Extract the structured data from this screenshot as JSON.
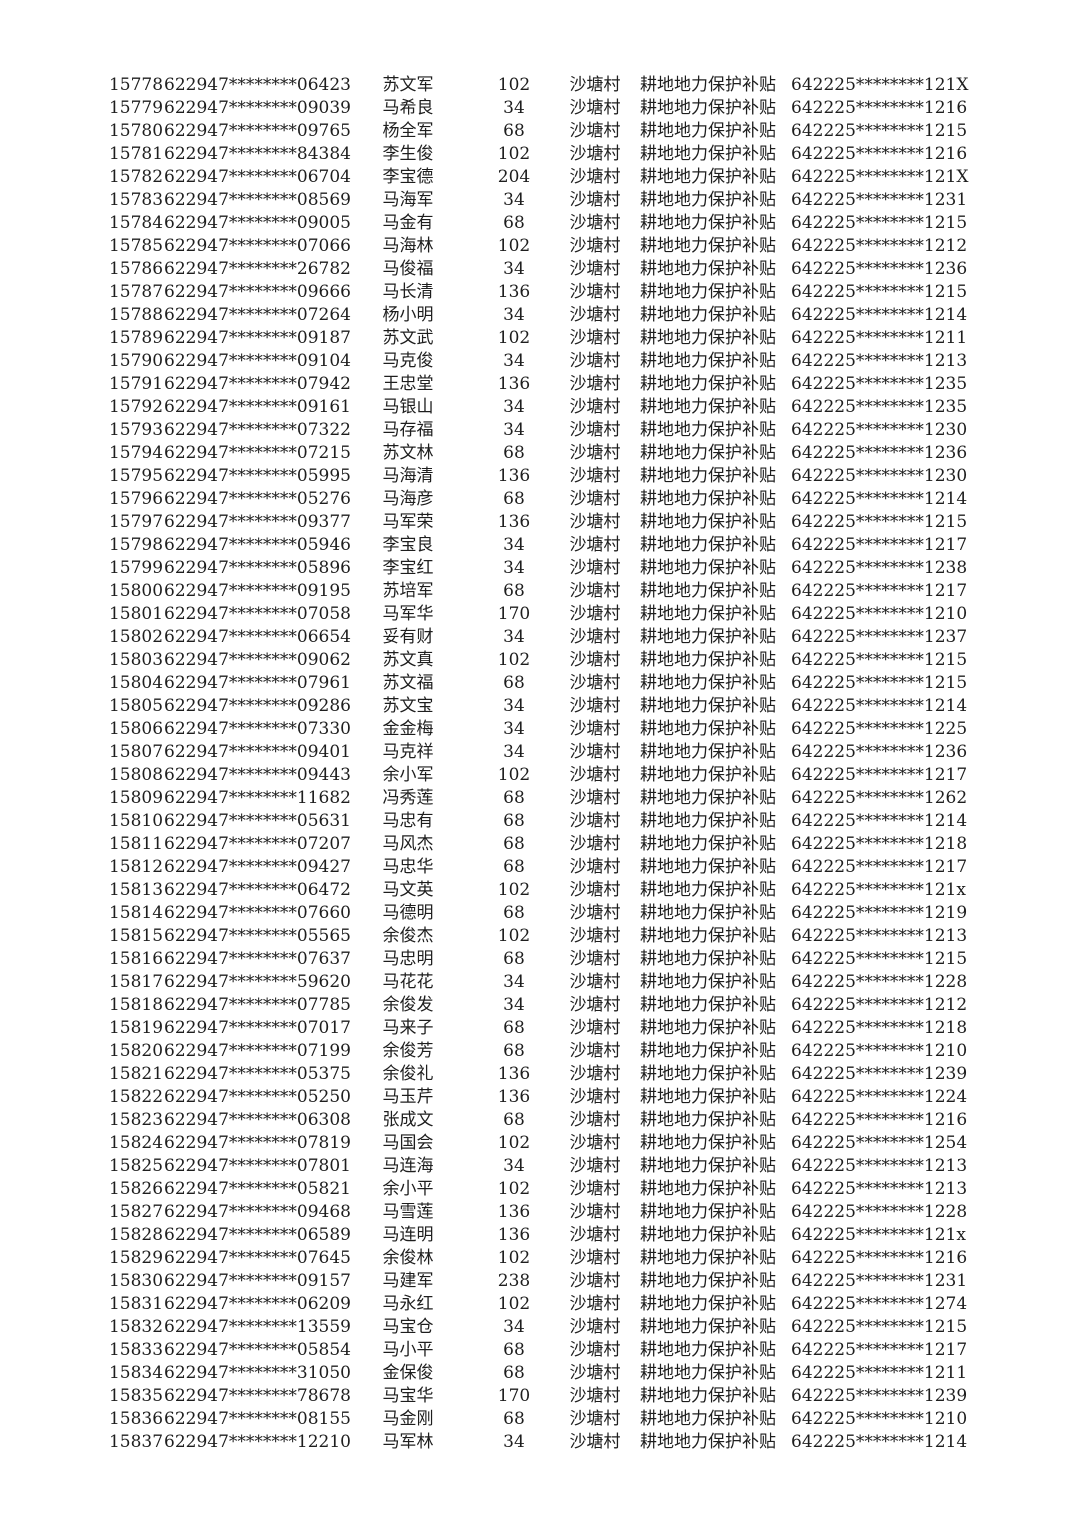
{
  "page": {
    "background_color": "#ffffff",
    "text_color": "#1e1e1e"
  },
  "table": {
    "columns": [
      "seq",
      "id_masked",
      "name",
      "amount",
      "village",
      "subsidy",
      "account_masked"
    ],
    "rows": [
      [
        "15778",
        "622947********06423",
        "苏文军",
        "102",
        "沙塘村",
        "耕地地力保护补贴",
        "642225********121X"
      ],
      [
        "15779",
        "622947********09039",
        "马希良",
        "34",
        "沙塘村",
        "耕地地力保护补贴",
        "642225********1216"
      ],
      [
        "15780",
        "622947********09765",
        "杨全军",
        "68",
        "沙塘村",
        "耕地地力保护补贴",
        "642225********1215"
      ],
      [
        "15781",
        "622947********84384",
        "李生俊",
        "102",
        "沙塘村",
        "耕地地力保护补贴",
        "642225********1216"
      ],
      [
        "15782",
        "622947********06704",
        "李宝德",
        "204",
        "沙塘村",
        "耕地地力保护补贴",
        "642225********121X"
      ],
      [
        "15783",
        "622947********08569",
        "马海军",
        "34",
        "沙塘村",
        "耕地地力保护补贴",
        "642225********1231"
      ],
      [
        "15784",
        "622947********09005",
        "马金有",
        "68",
        "沙塘村",
        "耕地地力保护补贴",
        "642225********1215"
      ],
      [
        "15785",
        "622947********07066",
        "马海林",
        "102",
        "沙塘村",
        "耕地地力保护补贴",
        "642225********1212"
      ],
      [
        "15786",
        "622947********26782",
        "马俊福",
        "34",
        "沙塘村",
        "耕地地力保护补贴",
        "642225********1236"
      ],
      [
        "15787",
        "622947********09666",
        "马长清",
        "136",
        "沙塘村",
        "耕地地力保护补贴",
        "642225********1215"
      ],
      [
        "15788",
        "622947********07264",
        "杨小明",
        "34",
        "沙塘村",
        "耕地地力保护补贴",
        "642225********1214"
      ],
      [
        "15789",
        "622947********09187",
        "苏文武",
        "102",
        "沙塘村",
        "耕地地力保护补贴",
        "642225********1211"
      ],
      [
        "15790",
        "622947********09104",
        "马克俊",
        "34",
        "沙塘村",
        "耕地地力保护补贴",
        "642225********1213"
      ],
      [
        "15791",
        "622947********07942",
        "王忠堂",
        "136",
        "沙塘村",
        "耕地地力保护补贴",
        "642225********1235"
      ],
      [
        "15792",
        "622947********09161",
        "马银山",
        "34",
        "沙塘村",
        "耕地地力保护补贴",
        "642225********1235"
      ],
      [
        "15793",
        "622947********07322",
        "马存福",
        "34",
        "沙塘村",
        "耕地地力保护补贴",
        "642225********1230"
      ],
      [
        "15794",
        "622947********07215",
        "苏文林",
        "68",
        "沙塘村",
        "耕地地力保护补贴",
        "642225********1236"
      ],
      [
        "15795",
        "622947********05995",
        "马海清",
        "136",
        "沙塘村",
        "耕地地力保护补贴",
        "642225********1230"
      ],
      [
        "15796",
        "622947********05276",
        "马海彦",
        "68",
        "沙塘村",
        "耕地地力保护补贴",
        "642225********1214"
      ],
      [
        "15797",
        "622947********09377",
        "马军荣",
        "136",
        "沙塘村",
        "耕地地力保护补贴",
        "642225********1215"
      ],
      [
        "15798",
        "622947********05946",
        "李宝良",
        "34",
        "沙塘村",
        "耕地地力保护补贴",
        "642225********1217"
      ],
      [
        "15799",
        "622947********05896",
        "李宝红",
        "34",
        "沙塘村",
        "耕地地力保护补贴",
        "642225********1238"
      ],
      [
        "15800",
        "622947********09195",
        "苏培军",
        "68",
        "沙塘村",
        "耕地地力保护补贴",
        "642225********1217"
      ],
      [
        "15801",
        "622947********07058",
        "马军华",
        "170",
        "沙塘村",
        "耕地地力保护补贴",
        "642225********1210"
      ],
      [
        "15802",
        "622947********06654",
        "妥有财",
        "34",
        "沙塘村",
        "耕地地力保护补贴",
        "642225********1237"
      ],
      [
        "15803",
        "622947********09062",
        "苏文真",
        "102",
        "沙塘村",
        "耕地地力保护补贴",
        "642225********1215"
      ],
      [
        "15804",
        "622947********07961",
        "苏文福",
        "68",
        "沙塘村",
        "耕地地力保护补贴",
        "642225********1215"
      ],
      [
        "15805",
        "622947********09286",
        "苏文宝",
        "34",
        "沙塘村",
        "耕地地力保护补贴",
        "642225********1214"
      ],
      [
        "15806",
        "622947********07330",
        "金金梅",
        "34",
        "沙塘村",
        "耕地地力保护补贴",
        "642225********1225"
      ],
      [
        "15807",
        "622947********09401",
        "马克祥",
        "34",
        "沙塘村",
        "耕地地力保护补贴",
        "642225********1236"
      ],
      [
        "15808",
        "622947********09443",
        "余小军",
        "102",
        "沙塘村",
        "耕地地力保护补贴",
        "642225********1217"
      ],
      [
        "15809",
        "622947********11682",
        "冯秀莲",
        "68",
        "沙塘村",
        "耕地地力保护补贴",
        "642225********1262"
      ],
      [
        "15810",
        "622947********05631",
        "马忠有",
        "68",
        "沙塘村",
        "耕地地力保护补贴",
        "642225********1214"
      ],
      [
        "15811",
        "622947********07207",
        "马风杰",
        "68",
        "沙塘村",
        "耕地地力保护补贴",
        "642225********1218"
      ],
      [
        "15812",
        "622947********09427",
        "马忠华",
        "68",
        "沙塘村",
        "耕地地力保护补贴",
        "642225********1217"
      ],
      [
        "15813",
        "622947********06472",
        "马文英",
        "102",
        "沙塘村",
        "耕地地力保护补贴",
        "642225********121x"
      ],
      [
        "15814",
        "622947********07660",
        "马德明",
        "68",
        "沙塘村",
        "耕地地力保护补贴",
        "642225********1219"
      ],
      [
        "15815",
        "622947********05565",
        "余俊杰",
        "102",
        "沙塘村",
        "耕地地力保护补贴",
        "642225********1213"
      ],
      [
        "15816",
        "622947********07637",
        "马忠明",
        "68",
        "沙塘村",
        "耕地地力保护补贴",
        "642225********1215"
      ],
      [
        "15817",
        "622947********59620",
        "马花花",
        "34",
        "沙塘村",
        "耕地地力保护补贴",
        "642225********1228"
      ],
      [
        "15818",
        "622947********07785",
        "余俊发",
        "34",
        "沙塘村",
        "耕地地力保护补贴",
        "642225********1212"
      ],
      [
        "15819",
        "622947********07017",
        "马来子",
        "68",
        "沙塘村",
        "耕地地力保护补贴",
        "642225********1218"
      ],
      [
        "15820",
        "622947********07199",
        "余俊芳",
        "68",
        "沙塘村",
        "耕地地力保护补贴",
        "642225********1210"
      ],
      [
        "15821",
        "622947********05375",
        "余俊礼",
        "136",
        "沙塘村",
        "耕地地力保护补贴",
        "642225********1239"
      ],
      [
        "15822",
        "622947********05250",
        "马玉芹",
        "136",
        "沙塘村",
        "耕地地力保护补贴",
        "642225********1224"
      ],
      [
        "15823",
        "622947********06308",
        "张成文",
        "68",
        "沙塘村",
        "耕地地力保护补贴",
        "642225********1216"
      ],
      [
        "15824",
        "622947********07819",
        "马国会",
        "102",
        "沙塘村",
        "耕地地力保护补贴",
        "642225********1254"
      ],
      [
        "15825",
        "622947********07801",
        "马连海",
        "34",
        "沙塘村",
        "耕地地力保护补贴",
        "642225********1213"
      ],
      [
        "15826",
        "622947********05821",
        "余小平",
        "102",
        "沙塘村",
        "耕地地力保护补贴",
        "642225********1213"
      ],
      [
        "15827",
        "622947********09468",
        "马雪莲",
        "136",
        "沙塘村",
        "耕地地力保护补贴",
        "642225********1228"
      ],
      [
        "15828",
        "622947********06589",
        "马连明",
        "136",
        "沙塘村",
        "耕地地力保护补贴",
        "642225********121x"
      ],
      [
        "15829",
        "622947********07645",
        "余俊林",
        "102",
        "沙塘村",
        "耕地地力保护补贴",
        "642225********1216"
      ],
      [
        "15830",
        "622947********09157",
        "马建军",
        "238",
        "沙塘村",
        "耕地地力保护补贴",
        "642225********1231"
      ],
      [
        "15831",
        "622947********06209",
        "马永红",
        "102",
        "沙塘村",
        "耕地地力保护补贴",
        "642225********1274"
      ],
      [
        "15832",
        "622947********13559",
        "马宝仓",
        "34",
        "沙塘村",
        "耕地地力保护补贴",
        "642225********1215"
      ],
      [
        "15833",
        "622947********05854",
        "马小平",
        "68",
        "沙塘村",
        "耕地地力保护补贴",
        "642225********1217"
      ],
      [
        "15834",
        "622947********31050",
        "金保俊",
        "68",
        "沙塘村",
        "耕地地力保护补贴",
        "642225********1211"
      ],
      [
        "15835",
        "622947********78678",
        "马宝华",
        "170",
        "沙塘村",
        "耕地地力保护补贴",
        "642225********1239"
      ],
      [
        "15836",
        "622947********08155",
        "马金刚",
        "68",
        "沙塘村",
        "耕地地力保护补贴",
        "642225********1210"
      ],
      [
        "15837",
        "622947********12210",
        "马军林",
        "34",
        "沙塘村",
        "耕地地力保护补贴",
        "642225********1214"
      ]
    ]
  }
}
